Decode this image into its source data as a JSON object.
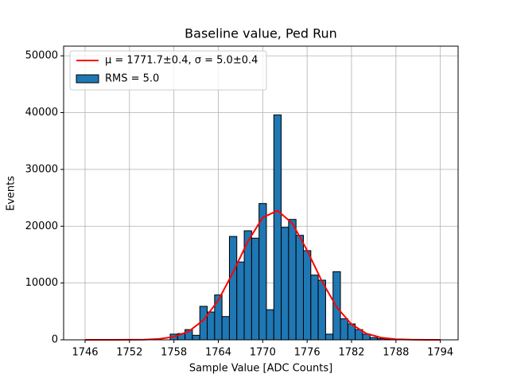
{
  "chart_data": {
    "type": "histogram",
    "title": "Baseline value, Ped Run",
    "xlabel": "Sample Value [ADC Counts]",
    "ylabel": "Events",
    "name": "RMS = 5.0",
    "color": "#1f77b4",
    "bins": [
      1757.5,
      1758.5,
      1759.5,
      1760.5,
      1761.5,
      1762.5,
      1763.5,
      1764.5,
      1765.5,
      1766.5,
      1767.5,
      1768.5,
      1769.5,
      1770.5,
      1771.5,
      1772.5,
      1773.5,
      1774.5,
      1775.5,
      1776.5,
      1777.5,
      1778.5,
      1779.5,
      1780.5,
      1781.5,
      1782.5,
      1783.5,
      1784.5,
      1785.5,
      1786.5,
      1787.5
    ],
    "counts": [
      1000,
      1100,
      1800,
      800,
      5900,
      4900,
      7900,
      4100,
      18200,
      13700,
      19200,
      17900,
      24000,
      5300,
      39600,
      19800,
      21200,
      18400,
      15700,
      11400,
      10500,
      1000,
      12000,
      3700,
      2800,
      1800,
      1000,
      400,
      200,
      100
    ],
    "fit": {
      "type": "line",
      "name": "μ = 1771.7±0.4, σ = 5.0±0.4",
      "color": "#ff0000",
      "x": [
        1746,
        1748,
        1750,
        1752,
        1754,
        1756,
        1758,
        1760,
        1762,
        1764,
        1766,
        1768,
        1770,
        1772,
        1774,
        1776,
        1778,
        1780,
        1782,
        1784,
        1786,
        1788,
        1790,
        1792,
        1794
      ],
      "values": [
        0,
        0,
        2,
        10,
        43,
        165,
        534,
        1475,
        3472,
        6965,
        11900,
        17335,
        21519,
        22759,
        20511,
        15753,
        10308,
        5748,
        2731,
        1106,
        382,
        112,
        28,
        6,
        0
      ]
    },
    "xlim": [
      1743.1,
      1796.4
    ],
    "ylim": [
      0,
      51700
    ],
    "xticks": [
      1746,
      1752,
      1758,
      1764,
      1770,
      1776,
      1782,
      1788,
      1794
    ],
    "yticks": [
      0,
      10000,
      20000,
      30000,
      40000,
      50000
    ],
    "grid": true,
    "legend": "upper left"
  }
}
